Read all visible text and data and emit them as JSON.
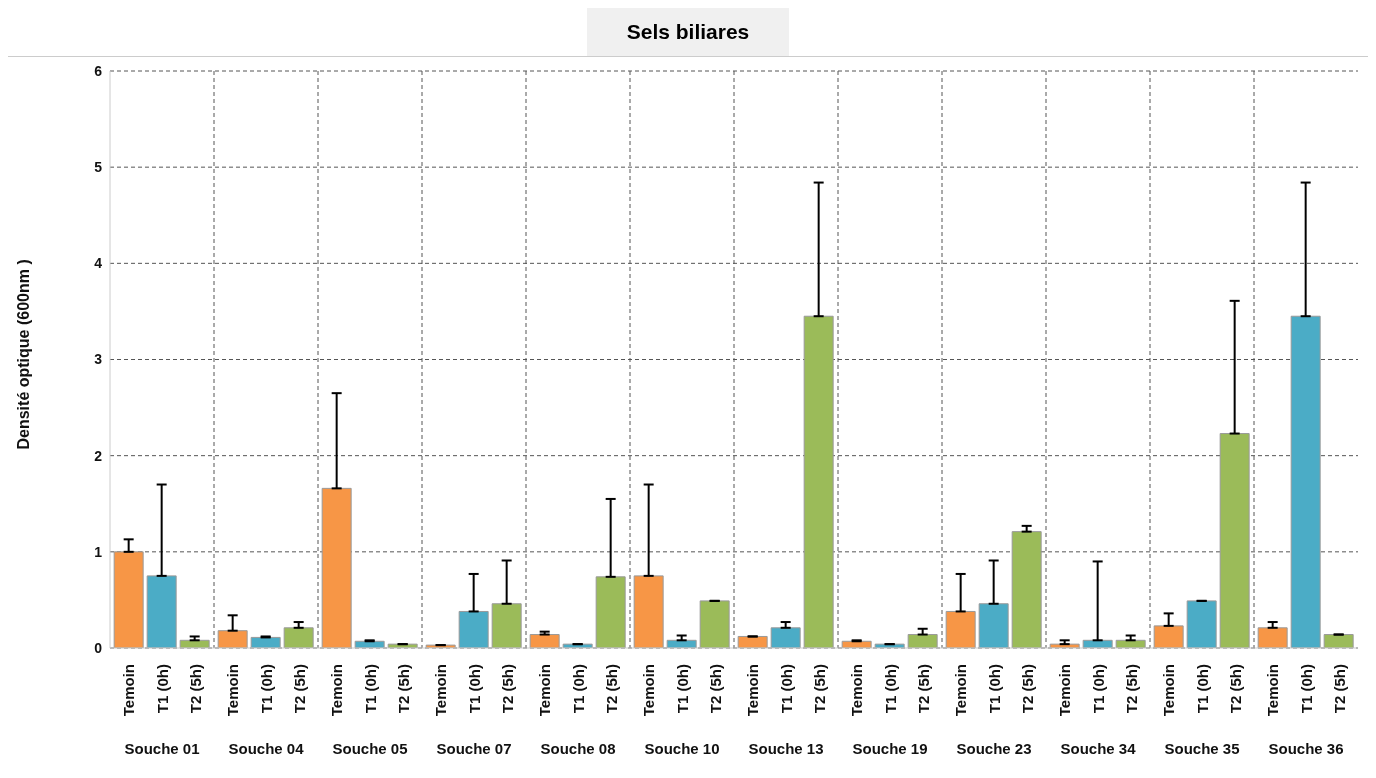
{
  "chart_data": {
    "type": "bar",
    "title": "Sels biliares",
    "ylabel": "Densité optique (600nm )",
    "categories": [
      "Souche 01",
      "Souche 04",
      "Souche 05",
      "Souche 07",
      "Souche 08",
      "Souche 10",
      "Souche 13",
      "Souche 19",
      "Souche 23",
      "Souche 34",
      "Souche 35",
      "Souche 36"
    ],
    "ylim": [
      0,
      6
    ],
    "yticks": [
      0,
      1,
      2,
      3,
      4,
      5,
      6
    ],
    "grid": true,
    "series": [
      {
        "name": "Temoin",
        "color": "#f79646",
        "values": [
          1.0,
          0.18,
          1.66,
          0.03,
          0.14,
          0.75,
          0.12,
          0.07,
          0.38,
          0.04,
          0.23,
          0.21
        ],
        "errors": [
          [
            1.0,
            1.13
          ],
          [
            0.18,
            0.34
          ],
          [
            1.66,
            2.65
          ],
          [
            0.03,
            0.03
          ],
          [
            0.14,
            0.17
          ],
          [
            0.75,
            1.7
          ],
          [
            0.12,
            0.12
          ],
          [
            0.07,
            0.08
          ],
          [
            0.38,
            0.77
          ],
          [
            0.04,
            0.08
          ],
          [
            0.23,
            0.36
          ],
          [
            0.21,
            0.27
          ]
        ]
      },
      {
        "name": "T1 (0h)",
        "color": "#4bacc6",
        "values": [
          0.75,
          0.11,
          0.07,
          0.38,
          0.04,
          0.08,
          0.21,
          0.04,
          0.46,
          0.08,
          0.49,
          3.45
        ],
        "errors": [
          [
            0.75,
            1.7
          ],
          [
            0.11,
            0.12
          ],
          [
            0.07,
            0.08
          ],
          [
            0.38,
            0.77
          ],
          [
            0.04,
            0.04
          ],
          [
            0.08,
            0.13
          ],
          [
            0.21,
            0.27
          ],
          [
            0.04,
            0.04
          ],
          [
            0.46,
            0.91
          ],
          [
            0.08,
            0.9
          ],
          [
            0.49,
            0.49
          ],
          [
            3.45,
            4.84
          ]
        ]
      },
      {
        "name": "T2 (5h)",
        "color": "#9bbb59",
        "values": [
          0.08,
          0.21,
          0.04,
          0.46,
          0.74,
          0.49,
          3.45,
          0.14,
          1.21,
          0.08,
          2.23,
          0.14
        ],
        "errors": [
          [
            0.08,
            0.12
          ],
          [
            0.21,
            0.27
          ],
          [
            0.04,
            0.04
          ],
          [
            0.46,
            0.91
          ],
          [
            0.74,
            1.55
          ],
          [
            0.49,
            0.49
          ],
          [
            3.45,
            4.84
          ],
          [
            0.14,
            0.2
          ],
          [
            1.21,
            1.27
          ],
          [
            0.08,
            0.13
          ],
          [
            2.23,
            3.61
          ],
          [
            0.14,
            0.14
          ]
        ]
      }
    ]
  }
}
